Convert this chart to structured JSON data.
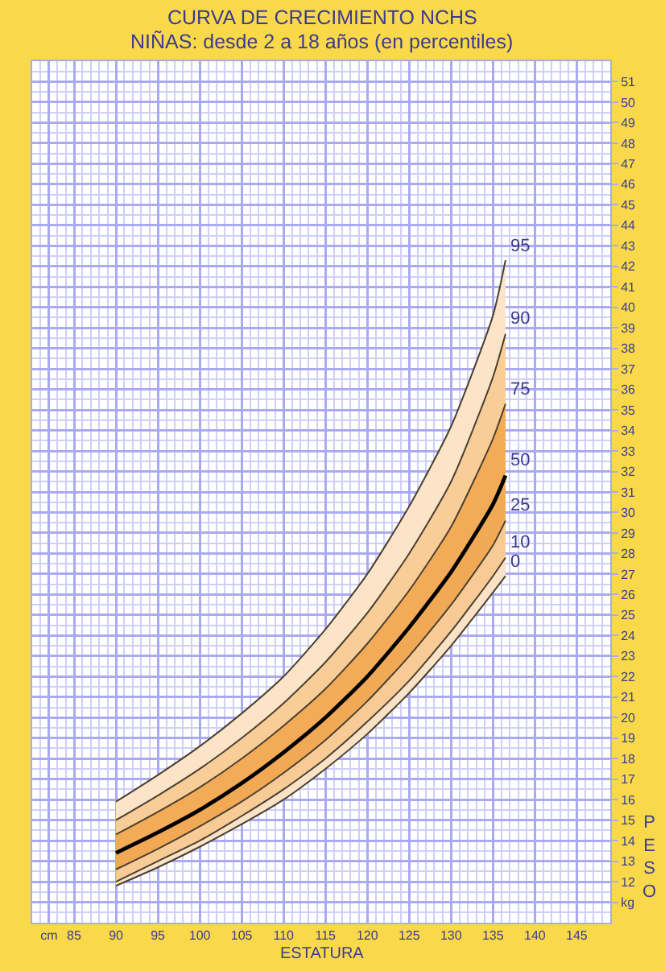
{
  "chart_data": {
    "type": "area",
    "title": "CURVA DE CRECIMIENTO NCHS",
    "subtitle": "NIÑAS: desde 2 a 18 años (en percentiles)",
    "xlabel": "ESTATURA",
    "ylabel": "PESO",
    "x": [
      90,
      95,
      100,
      105,
      110,
      115,
      120,
      125,
      130,
      135,
      136.5
    ],
    "series": [
      {
        "name": "95",
        "color": "#fbe4c8",
        "values": [
          15.9,
          17.2,
          18.6,
          20.2,
          22.0,
          24.3,
          27.0,
          30.3,
          34.2,
          39.6,
          42.3
        ]
      },
      {
        "name": "90",
        "color": "#f9cd98",
        "values": [
          15.0,
          16.2,
          17.5,
          19.0,
          20.7,
          22.7,
          25.1,
          28.0,
          31.5,
          36.6,
          38.7
        ]
      },
      {
        "name": "75",
        "color": "#f3ab58",
        "values": [
          14.3,
          15.4,
          16.6,
          18.0,
          19.6,
          21.4,
          23.6,
          26.2,
          29.3,
          33.6,
          35.3
        ]
      },
      {
        "name": "50",
        "color": "#f2a955",
        "values": [
          13.4,
          14.4,
          15.5,
          16.8,
          18.3,
          20.0,
          22.0,
          24.4,
          27.1,
          30.4,
          31.8
        ]
      },
      {
        "name": "25",
        "color": "#f8cb96",
        "values": [
          12.6,
          13.6,
          14.7,
          15.9,
          17.3,
          18.9,
          20.8,
          23.0,
          25.5,
          28.4,
          29.6
        ]
      },
      {
        "name": "10",
        "color": "#fae2c6",
        "values": [
          12.0,
          13.0,
          14.0,
          15.2,
          16.5,
          18.0,
          19.8,
          21.8,
          24.2,
          26.9,
          27.8
        ]
      },
      {
        "name": "0",
        "type": "line",
        "color": "#4a4030",
        "values": [
          11.8,
          12.7,
          13.7,
          14.8,
          16.0,
          17.5,
          19.2,
          21.2,
          23.5,
          26.1,
          26.9
        ]
      }
    ],
    "xlim": [
      80,
      149
    ],
    "ylim": [
      10,
      52
    ],
    "xticks": [
      {
        "value": 82,
        "label": "cm"
      },
      85,
      90,
      95,
      100,
      105,
      110,
      115,
      120,
      125,
      130,
      135,
      140,
      145,
      {
        "value": 81,
        "label": null
      },
      {
        "value": 83,
        "label": null
      },
      {
        "value": 84,
        "label": null
      },
      {
        "value": 86,
        "label": null
      },
      {
        "value": 87,
        "label": null
      },
      {
        "value": 88,
        "label": null
      },
      {
        "value": 89,
        "label": null
      },
      {
        "value": 91,
        "label": null
      },
      {
        "value": 92,
        "label": null
      },
      {
        "value": 93,
        "label": null
      },
      {
        "value": 94,
        "label": null
      },
      {
        "value": 96,
        "label": null
      },
      {
        "value": 97,
        "label": null
      },
      {
        "value": 98,
        "label": null
      },
      {
        "value": 99,
        "label": null
      },
      {
        "value": 101,
        "label": null
      },
      {
        "value": 102,
        "label": null
      },
      {
        "value": 103,
        "label": null
      },
      {
        "value": 104,
        "label": null
      },
      {
        "value": 106,
        "label": null
      },
      {
        "value": 107,
        "label": null
      },
      {
        "value": 108,
        "label": null
      },
      {
        "value": 109,
        "label": null
      },
      {
        "value": 111,
        "label": null
      },
      {
        "value": 112,
        "label": null
      },
      {
        "value": 113,
        "label": null
      },
      {
        "value": 114,
        "label": null
      },
      {
        "value": 116,
        "label": null
      },
      {
        "value": 117,
        "label": null
      },
      {
        "value": 118,
        "label": null
      },
      {
        "value": 119,
        "label": null
      },
      {
        "value": 121,
        "label": null
      },
      {
        "value": 122,
        "label": null
      },
      {
        "value": 123,
        "label": null
      },
      {
        "value": 124,
        "label": null
      },
      {
        "value": 126,
        "label": null
      },
      {
        "value": 127,
        "label": null
      },
      {
        "value": 128,
        "label": null
      },
      {
        "value": 129,
        "label": null
      },
      {
        "value": 131,
        "label": null
      },
      {
        "value": 132,
        "label": null
      },
      {
        "value": 133,
        "label": null
      },
      {
        "value": 134,
        "label": null
      },
      {
        "value": 136,
        "label": null
      },
      {
        "value": 137,
        "label": null
      },
      {
        "value": 138,
        "label": null
      },
      {
        "value": 139,
        "label": null
      },
      {
        "value": 141,
        "label": null
      },
      {
        "value": 142,
        "label": null
      },
      {
        "value": 143,
        "label": null
      },
      {
        "value": 144,
        "label": null
      },
      {
        "value": 146,
        "label": null
      },
      {
        "value": 147,
        "label": null
      },
      {
        "value": 148,
        "label": null
      }
    ],
    "yticks": [
      {
        "value": 11,
        "label": "kg"
      },
      12,
      13,
      14,
      15,
      16,
      17,
      18,
      19,
      20,
      21,
      22,
      23,
      24,
      25,
      26,
      27,
      28,
      29,
      30,
      31,
      32,
      33,
      34,
      35,
      36,
      37,
      38,
      39,
      40,
      41,
      42,
      43,
      44,
      45,
      46,
      47,
      48,
      49,
      50,
      51,
      {
        "value": 10.5,
        "label": null
      },
      {
        "value": 11.5,
        "label": null
      },
      {
        "value": 12.5,
        "label": null
      },
      {
        "value": 13.5,
        "label": null
      },
      {
        "value": 14.5,
        "label": null
      },
      {
        "value": 15.5,
        "label": null
      },
      {
        "value": 16.5,
        "label": null
      },
      {
        "value": 17.5,
        "label": null
      },
      {
        "value": 18.5,
        "label": null
      },
      {
        "value": 19.5,
        "label": null
      },
      {
        "value": 20.5,
        "label": null
      },
      {
        "value": 21.5,
        "label": null
      },
      {
        "value": 22.5,
        "label": null
      },
      {
        "value": 23.5,
        "label": null
      },
      {
        "value": 24.5,
        "label": null
      },
      {
        "value": 25.5,
        "label": null
      },
      {
        "value": 26.5,
        "label": null
      },
      {
        "value": 27.5,
        "label": null
      },
      {
        "value": 28.5,
        "label": null
      },
      {
        "value": 29.5,
        "label": null
      },
      {
        "value": 30.5,
        "label": null
      },
      {
        "value": 31.5,
        "label": null
      },
      {
        "value": 32.5,
        "label": null
      },
      {
        "value": 33.5,
        "label": null
      },
      {
        "value": 34.5,
        "label": null
      },
      {
        "value": 35.5,
        "label": null
      },
      {
        "value": 36.5,
        "label": null
      },
      {
        "value": 37.5,
        "label": null
      },
      {
        "value": 38.5,
        "label": null
      },
      {
        "value": 39.5,
        "label": null
      },
      {
        "value": 40.5,
        "label": null
      },
      {
        "value": 41.5,
        "label": null
      },
      {
        "value": 42.5,
        "label": null
      },
      {
        "value": 43.5,
        "label": null
      },
      {
        "value": 44.5,
        "label": null
      },
      {
        "value": 45.5,
        "label": null
      },
      {
        "value": 46.5,
        "label": null
      },
      {
        "value": 47.5,
        "label": null
      },
      {
        "value": 48.5,
        "label": null
      },
      {
        "value": 49.5,
        "label": null
      },
      {
        "value": 50.5,
        "label": null
      },
      {
        "value": 51.5,
        "label": null
      }
    ],
    "grid": true,
    "legend": false
  }
}
